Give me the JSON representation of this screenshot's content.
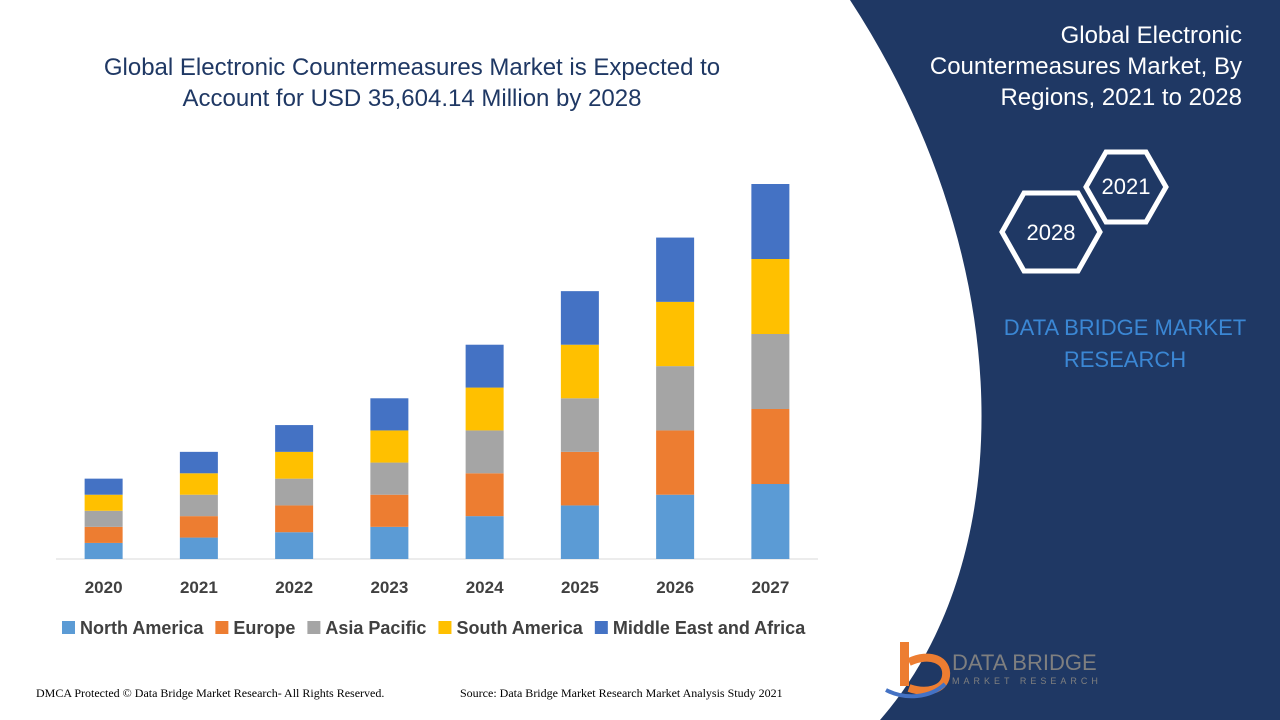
{
  "header": {
    "chart_title_line1": "Global Electronic Countermeasures Market is Expected to",
    "chart_title_line2": "Account for USD 35,604.14 Million by 2028"
  },
  "right_panel": {
    "title_line1": "Global Electronic",
    "title_line2": "Countermeasures Market, By",
    "title_line3": "Regions, 2021 to 2028",
    "hex_year_1": "2021",
    "hex_year_2": "2028",
    "brand_line1": "DATA BRIDGE MARKET",
    "brand_line2": "RESEARCH"
  },
  "footer": {
    "left": "DMCA Protected © Data Bridge Market Research- All Rights Reserved.",
    "right": "Source: Data Bridge Market Research Market Analysis Study 2021"
  },
  "logo": {
    "name": "DATA BRIDGE",
    "sub": "MARKET RESEARCH"
  },
  "colors": {
    "panel_navy": "#1f3864",
    "title_blue": "#1f3864",
    "brand_blue": "#3b87d4"
  },
  "chart_data": {
    "type": "bar",
    "stacked": true,
    "title": "Global Electronic Countermeasures Market is Expected to Account for USD 35,604.14 Million by 2028",
    "categories": [
      "2020",
      "2021",
      "2022",
      "2023",
      "2024",
      "2025",
      "2026",
      "2027"
    ],
    "series": [
      {
        "name": "North America",
        "color": "#5b9bd5",
        "values": [
          15,
          20,
          25,
          30,
          40,
          50,
          60,
          70
        ]
      },
      {
        "name": "Europe",
        "color": "#ed7d31",
        "values": [
          15,
          20,
          25,
          30,
          40,
          50,
          60,
          70
        ]
      },
      {
        "name": "Asia Pacific",
        "color": "#a5a5a5",
        "values": [
          15,
          20,
          25,
          30,
          40,
          50,
          60,
          70
        ]
      },
      {
        "name": "South America",
        "color": "#ffc000",
        "values": [
          15,
          20,
          25,
          30,
          40,
          50,
          60,
          70
        ]
      },
      {
        "name": "Middle East and Africa",
        "color": "#4472c4",
        "values": [
          15,
          20,
          25,
          30,
          40,
          50,
          60,
          70
        ]
      }
    ],
    "xlabel": "",
    "ylabel": "",
    "ylim": [
      0,
      350
    ],
    "grid": false,
    "legend": "bottom"
  }
}
